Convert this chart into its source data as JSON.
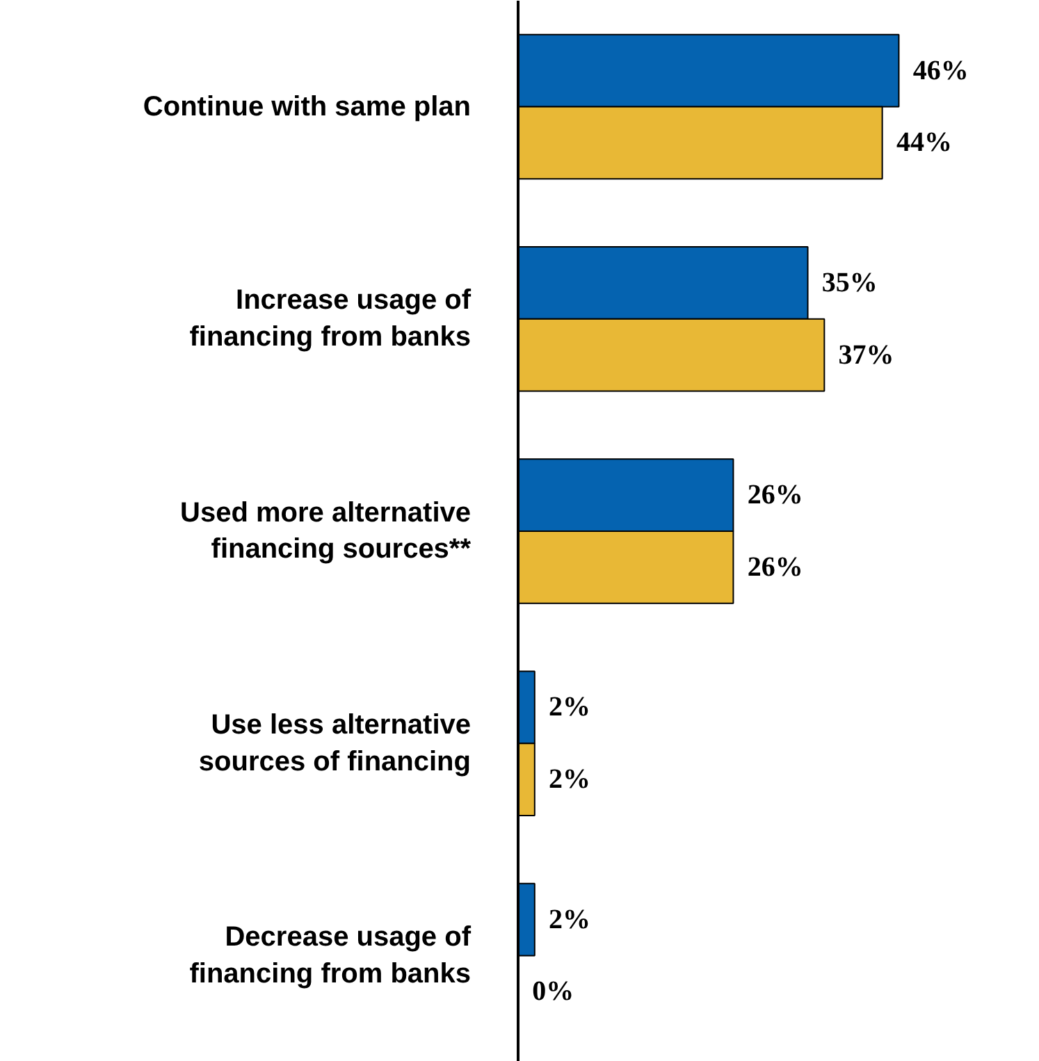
{
  "chart_data": {
    "type": "bar",
    "orientation": "horizontal",
    "categories": [
      "Continue with same plan",
      "Increase usage of\nfinancing from banks",
      "Used more alternative\nfinancing sources**",
      "Use less alternative\nsources of financing",
      "Decrease usage of\nfinancing from banks"
    ],
    "series": [
      {
        "color": "#0563b0",
        "values": [
          46,
          35,
          26,
          2,
          2
        ],
        "value_labels": [
          "46%",
          "35%",
          "26%",
          "2%",
          "2%"
        ]
      },
      {
        "color": "#e8b836",
        "values": [
          44,
          37,
          26,
          2,
          0
        ],
        "value_labels": [
          "44%",
          "37%",
          "26%",
          "2%",
          "0%"
        ]
      }
    ],
    "tick_labels": "y",
    "grid": false
  }
}
